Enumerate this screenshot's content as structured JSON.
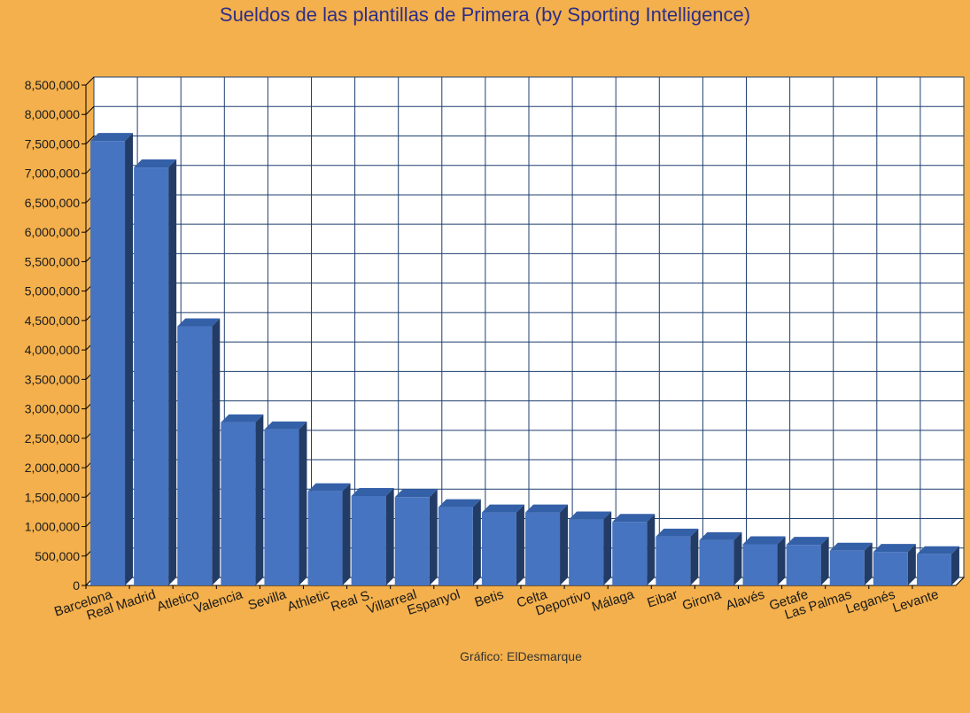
{
  "chart_data": {
    "type": "bar",
    "title": "Sueldos de las plantillas de Primera (by Sporting Intelligence)",
    "credit": "Gráfico: ElDesmarque",
    "categories": [
      "Barcelona",
      "Real Madrid",
      "Atletico",
      "Valencia",
      "Sevilla",
      "Athletic",
      "Real S.",
      "Villarreal",
      "Espanyol",
      "Betis",
      "Celta",
      "Deportivo",
      "Málaga",
      "Eibar",
      "Girona",
      "Alavés",
      "Getafe",
      "Las Palmas",
      "Leganés",
      "Levante"
    ],
    "values": [
      7550000,
      7100000,
      4400000,
      2770000,
      2650000,
      1600000,
      1520000,
      1500000,
      1330000,
      1240000,
      1240000,
      1120000,
      1080000,
      830000,
      770000,
      700000,
      690000,
      590000,
      570000,
      530000
    ],
    "yticks": [
      "0",
      "500,000",
      "1,000,000",
      "1,500,000",
      "2,000,000",
      "2,500,000",
      "3,000,000",
      "3,500,000",
      "4,000,000",
      "4,500,000",
      "5,000,000",
      "5,500,000",
      "6,000,000",
      "6,500,000",
      "7,000,000",
      "7,500,000",
      "8,000,000",
      "8,500,000"
    ],
    "ylim": [
      0,
      8500000
    ],
    "grid": true,
    "xlabel": "",
    "ylabel": "",
    "colors": {
      "background": "#F4B04C",
      "plot_area": "#FFFFFF",
      "grid": "#1F3F6E",
      "bar_front": "#4774C0",
      "bar_side": "#233C66",
      "bar_top": "#3460A8",
      "title": "#2E2E86"
    }
  }
}
